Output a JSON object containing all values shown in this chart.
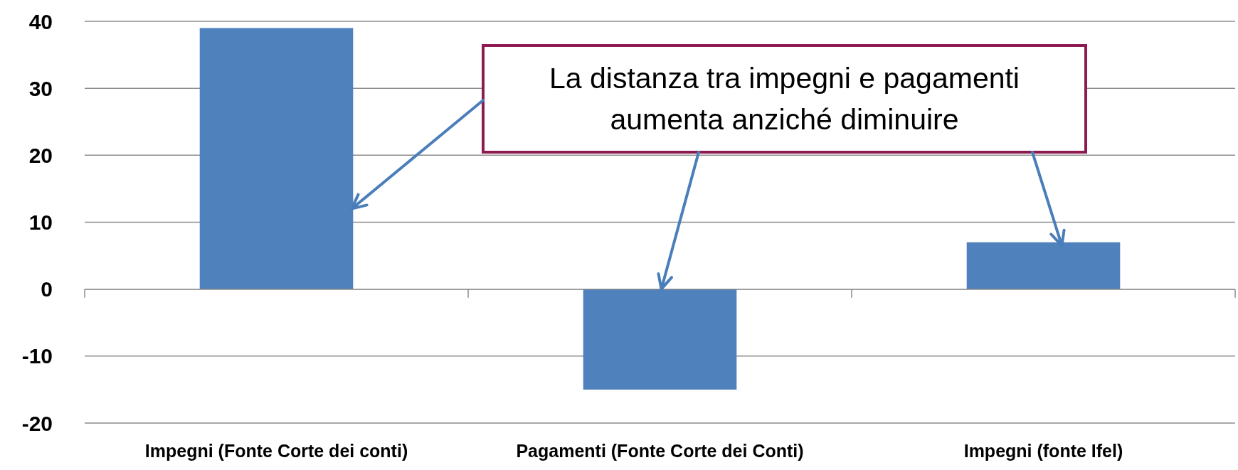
{
  "chart_data": {
    "type": "bar",
    "categories": [
      "Impegni (Fonte Corte dei conti)",
      "Pagamenti (Fonte Corte dei Conti)",
      "Impegni (fonte Ifel)"
    ],
    "values": [
      39,
      -15,
      7
    ],
    "color": "#4f81bd",
    "ylim": [
      -20,
      40
    ],
    "yticks": [
      -20,
      -10,
      0,
      10,
      20,
      30,
      40
    ],
    "grid": "y",
    "annotations": [
      {
        "text": "La distanza tra impegni e pagamenti aumenta anziché diminuire",
        "x": "Pagamenti (Fonte Corte dei Conti)",
        "y": 0
      }
    ]
  }
}
